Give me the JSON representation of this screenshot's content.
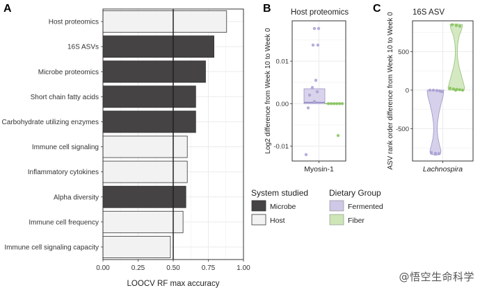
{
  "chart_data": [
    {
      "panel": "A",
      "type": "bar",
      "orientation": "horizontal",
      "categories": [
        "Host proteomics",
        "16S ASVs",
        "Microbe proteomics",
        "Short chain fatty acids",
        "Carbohydrate utilizing enzymes",
        "Immune cell signaling",
        "Inflammatory cytokines",
        "Alpha diversity",
        "Immune cell frequency",
        "Immune cell signaling capacity"
      ],
      "values": [
        0.88,
        0.79,
        0.73,
        0.66,
        0.66,
        0.6,
        0.6,
        0.59,
        0.57,
        0.48
      ],
      "system": [
        "Host",
        "Microbe",
        "Microbe",
        "Microbe",
        "Microbe",
        "Host",
        "Host",
        "Microbe",
        "Host",
        "Host"
      ],
      "xlabel": "LOOCV RF max accuracy",
      "xlim": [
        0,
        1.0
      ],
      "xticks": [
        "0.00",
        "0.25",
        "0.50",
        "0.75",
        "1.00"
      ],
      "reference_line": 0.5,
      "grid": true
    },
    {
      "panel": "B",
      "type": "boxplot",
      "title": "Host proteomics",
      "category": "Myosin-1",
      "ylabel": "Log2 difference from Week 10 to Week 0",
      "ylim": [
        -0.0135,
        0.0195
      ],
      "yticks": [
        "-0.01",
        "0.00",
        "0.01"
      ],
      "groups": [
        {
          "name": "Fermented",
          "q1": 0.0,
          "median": 0.0003,
          "q3": 0.0035,
          "points": [
            0.0177,
            0.0177,
            0.0138,
            0.0138,
            0.0055,
            0.0038,
            0.0028,
            0.002,
            0.0005,
            -0.001,
            -0.012
          ]
        },
        {
          "name": "Fiber",
          "q1": -0.0001,
          "median": 0.0,
          "q3": 0.0001,
          "points": [
            0.0,
            0.0,
            0.0,
            0.0,
            0.0,
            0.0,
            -0.0075
          ]
        }
      ]
    },
    {
      "panel": "C",
      "type": "violin",
      "title": "16S ASV",
      "category": "Lachnospira",
      "ylabel": "ASV rank order difference from Week 10 to Week 0",
      "ylim": [
        -920,
        900
      ],
      "yticks": [
        "-500",
        "0",
        "500"
      ],
      "groups": [
        {
          "name": "Fermented",
          "points": [
            0,
            0,
            -5,
            -10,
            -20,
            -810,
            -820,
            -825
          ]
        },
        {
          "name": "Fiber",
          "points": [
            850,
            840,
            830,
            25,
            15,
            10,
            5,
            0,
            0
          ]
        }
      ]
    }
  ],
  "panel_labels": {
    "a": "A",
    "b": "B",
    "c": "C"
  },
  "legend_system": {
    "title": "System studied",
    "items": [
      {
        "label": "Microbe",
        "color": "#454343"
      },
      {
        "label": "Host",
        "color": "#f2f2f2"
      }
    ]
  },
  "legend_diet": {
    "title": "Dietary Group",
    "items": [
      {
        "label": "Fermented",
        "color": "#cfc8e6"
      },
      {
        "label": "Fiber",
        "color": "#cde5b7"
      }
    ]
  },
  "colors": {
    "microbe": "#454343",
    "host": "#f2f2f2",
    "fermented_fill": "#cfc8e6",
    "fermented_point": "#a89fd3",
    "fiber_fill": "#cde5b7",
    "fiber_point": "#86c35e",
    "grid": "#ebebeb",
    "text": "#333333"
  },
  "watermark": "@悟空生命科学"
}
